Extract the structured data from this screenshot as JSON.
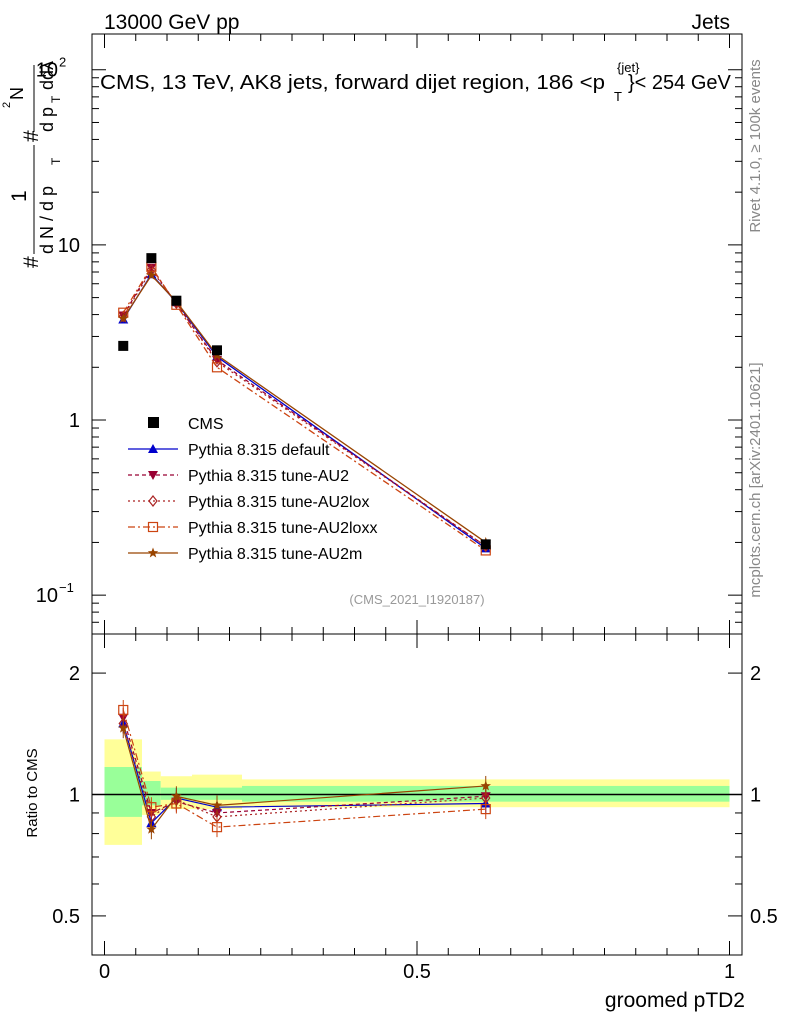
{
  "header": {
    "left": "13000 GeV pp",
    "right": "Jets"
  },
  "side_labels": {
    "rivet": "Rivet 4.1.0, ≥ 100k events",
    "mcplots": "mcplots.cern.ch [arXiv:2401.10621]"
  },
  "chart_data": [
    {
      "panel": "main",
      "type": "line",
      "title": "CMS, 13 TeV, AK8 jets, forward dijet region, 186 <p_T^{jet}< 254 GeV",
      "title_parts": [
        "CMS, 13 TeV, AK8 jets, forward dijet region, 186 <p",
        "{jet}",
        "T",
        "}< 254 GeV"
      ],
      "ylabel_parts": [
        "#",
        "1",
        "d N / d p",
        "T",
        "#",
        "d p",
        "T",
        "d",
        "2",
        "N",
        "dλ"
      ],
      "yscale": "log",
      "ylim": [
        0.06,
        160
      ],
      "xlim": [
        -0.02,
        1.02
      ],
      "y_ticks": [
        {
          "value": 0.1,
          "base": "10",
          "exp": "−1"
        },
        {
          "value": 1,
          "label": "1"
        },
        {
          "value": 10,
          "label": "10"
        },
        {
          "value": 100,
          "base": "10",
          "exp": "2"
        }
      ],
      "watermark": "(CMS_2021_I1920187)",
      "data": {
        "name": "CMS",
        "x": [
          0.03,
          0.075,
          0.115,
          0.18,
          0.61
        ],
        "y": [
          2.65,
          8.4,
          4.8,
          2.5,
          0.195
        ]
      },
      "series": [
        {
          "name": "Pythia 8.315 default",
          "color": "#0000cc",
          "dash": "",
          "marker": "triangle-up",
          "x": [
            0.03,
            0.075,
            0.115,
            0.18,
            0.61
          ],
          "y": [
            3.75,
            6.8,
            4.7,
            2.3,
            0.185
          ]
        },
        {
          "name": "Pythia 8.315 tune-AU2",
          "color": "#990033",
          "dash": "4,3",
          "marker": "triangle-down",
          "x": [
            0.03,
            0.075,
            0.115,
            0.18,
            0.61
          ],
          "y": [
            3.95,
            7.4,
            4.6,
            2.2,
            0.19
          ]
        },
        {
          "name": "Pythia 8.315 tune-AU2lox",
          "color": "#aa2222",
          "dash": "2,3",
          "marker": "diamond-open",
          "x": [
            0.03,
            0.075,
            0.115,
            0.18,
            0.61
          ],
          "y": [
            3.9,
            7.2,
            4.65,
            2.15,
            0.19
          ]
        },
        {
          "name": "Pythia 8.315 tune-AU2loxx",
          "color": "#cc4411",
          "dash": "7,3,2,3",
          "marker": "square-open",
          "x": [
            0.03,
            0.075,
            0.115,
            0.18,
            0.61
          ],
          "y": [
            4.1,
            7.5,
            4.55,
            2.0,
            0.18
          ]
        },
        {
          "name": "Pythia 8.315 tune-AU2m",
          "color": "#994400",
          "dash": "",
          "marker": "star",
          "x": [
            0.03,
            0.075,
            0.115,
            0.18,
            0.61
          ],
          "y": [
            3.8,
            6.7,
            4.75,
            2.35,
            0.2
          ]
        }
      ]
    },
    {
      "panel": "ratio",
      "type": "line",
      "ylabel": "Ratio to CMS",
      "xlabel": "groomed pTD2",
      "yscale": "log",
      "ylim": [
        0.4,
        2.5
      ],
      "xlim": [
        -0.02,
        1.02
      ],
      "y_ticks": [
        0.5,
        1,
        2
      ],
      "y_tick_labels": [
        "0.5",
        "1",
        "2"
      ],
      "x_ticks": [
        0,
        0.5,
        1
      ],
      "x_tick_labels": [
        "0",
        "0.5",
        "1"
      ],
      "uncertainty_bins": [
        {
          "x0": 0.0,
          "x1": 0.06,
          "stat": [
            0.88,
            1.17
          ],
          "total": [
            0.75,
            1.37
          ]
        },
        {
          "x0": 0.06,
          "x1": 0.09,
          "stat": [
            0.94,
            1.08
          ],
          "total": [
            0.89,
            1.14
          ]
        },
        {
          "x0": 0.09,
          "x1": 0.14,
          "stat": [
            0.97,
            1.04
          ],
          "total": [
            0.92,
            1.11
          ]
        },
        {
          "x0": 0.14,
          "x1": 0.22,
          "stat": [
            0.97,
            1.04
          ],
          "total": [
            0.92,
            1.12
          ]
        },
        {
          "x0": 0.22,
          "x1": 1.0,
          "stat": [
            0.96,
            1.05
          ],
          "total": [
            0.93,
            1.09
          ]
        }
      ],
      "series": [
        {
          "name": "Pythia 8.315 default",
          "x": [
            0.03,
            0.075,
            0.115,
            0.18,
            0.61
          ],
          "y": [
            1.5,
            0.85,
            0.98,
            0.93,
            0.95
          ]
        },
        {
          "name": "Pythia 8.315 tune-AU2",
          "x": [
            0.03,
            0.075,
            0.115,
            0.18,
            0.61
          ],
          "y": [
            1.55,
            0.9,
            0.96,
            0.9,
            0.99
          ]
        },
        {
          "name": "Pythia 8.315 tune-AU2lox",
          "x": [
            0.03,
            0.075,
            0.115,
            0.18,
            0.61
          ],
          "y": [
            1.5,
            0.88,
            0.97,
            0.88,
            0.98
          ]
        },
        {
          "name": "Pythia 8.315 tune-AU2loxx",
          "x": [
            0.03,
            0.075,
            0.115,
            0.18,
            0.61
          ],
          "y": [
            1.62,
            0.93,
            0.95,
            0.83,
            0.92
          ]
        },
        {
          "name": "Pythia 8.315 tune-AU2m",
          "x": [
            0.03,
            0.075,
            0.115,
            0.18,
            0.61
          ],
          "y": [
            1.46,
            0.82,
            0.99,
            0.94,
            1.05
          ]
        }
      ]
    }
  ]
}
